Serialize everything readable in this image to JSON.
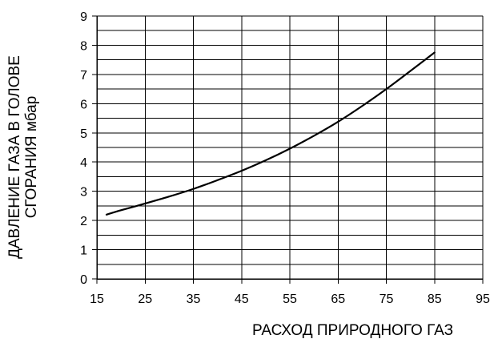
{
  "chart_data": {
    "type": "line",
    "title": "",
    "xlabel": "РАСХОД ПРИРОДНОГО ГАЗ",
    "ylabel_lines": [
      "ДАВЛЕНИЕ ГАЗА В ГОЛОВЕ",
      "СГОРАНИЯ мбар"
    ],
    "xlim": [
      15,
      95
    ],
    "ylim": [
      0,
      9
    ],
    "x_ticks": [
      "15",
      "25",
      "35",
      "45",
      "55",
      "65",
      "75",
      "85",
      "95"
    ],
    "y_ticks": [
      "0",
      "1",
      "2",
      "3",
      "4",
      "5",
      "6",
      "7",
      "8",
      "9"
    ],
    "grid": {
      "horizontal_minor_step": 0.5,
      "vertical_step": 10
    },
    "series": [
      {
        "color": "#000000",
        "x": [
          17,
          20,
          25,
          30,
          35,
          40,
          45,
          50,
          55,
          60,
          65,
          70,
          75,
          80,
          85
        ],
        "y": [
          2.2,
          2.35,
          2.58,
          2.82,
          3.08,
          3.38,
          3.7,
          4.06,
          4.46,
          4.9,
          5.38,
          5.92,
          6.5,
          7.12,
          7.75
        ]
      }
    ]
  }
}
